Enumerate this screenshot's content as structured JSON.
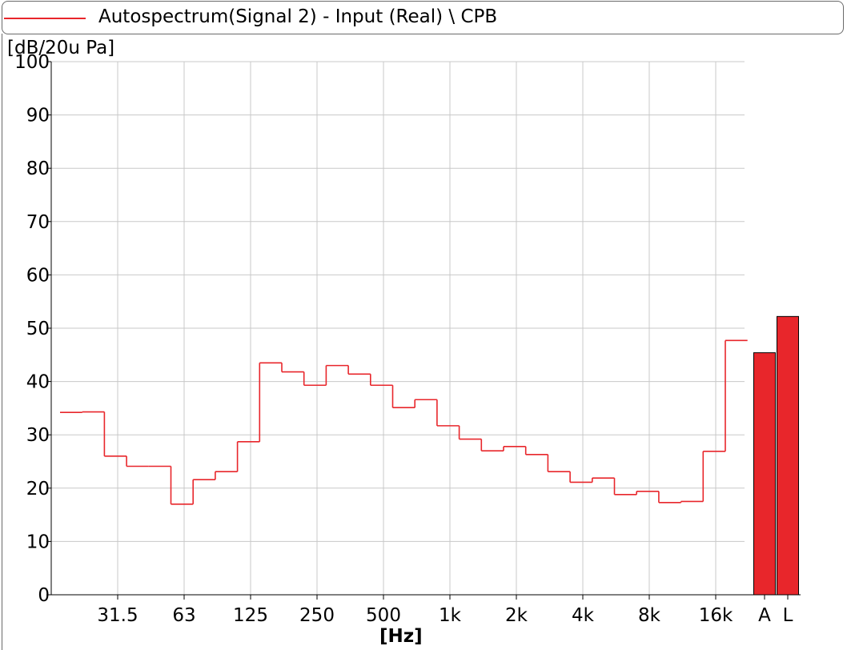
{
  "legend": {
    "label": "Autospectrum(Signal 2) - Input (Real) \\ CPB",
    "color": "#e8262b"
  },
  "chart_data": {
    "type": "line",
    "subtype": "step (1/1-octave CPB spectrum) with overall level bars",
    "title": "",
    "ylabel": "[dB/20u Pa]",
    "xlabel": "[Hz]",
    "ylim": [
      0,
      100
    ],
    "y_ticks": [
      "0",
      "10",
      "20",
      "30",
      "40",
      "50",
      "60",
      "70",
      "80",
      "90",
      "100"
    ],
    "x_tick_labels": [
      "31.5",
      "63",
      "125",
      "250",
      "500",
      "1k",
      "2k",
      "4k",
      "8k",
      "16k"
    ],
    "x_scale": "log (octave bands)",
    "grid": true,
    "series": [
      {
        "name": "Autospectrum(Signal 2) - Input (Real) \\ CPB",
        "color": "#e8262b",
        "x": [
          "20",
          "25",
          "31.5",
          "40",
          "50",
          "63",
          "80",
          "100",
          "125",
          "160",
          "200",
          "250",
          "315",
          "400",
          "500",
          "630",
          "800",
          "1k",
          "1.25k",
          "1.6k",
          "2k",
          "2.5k",
          "3.15k",
          "4k",
          "5k",
          "6.3k",
          "8k",
          "10k",
          "12.5k",
          "16k",
          "20k"
        ],
        "values": [
          34.2,
          34.3,
          26.0,
          24.1,
          24.1,
          17.0,
          21.6,
          23.1,
          28.7,
          43.5,
          41.8,
          39.3,
          43.0,
          41.4,
          39.3,
          35.1,
          36.6,
          31.7,
          29.2,
          27.0,
          27.8,
          26.3,
          23.1,
          21.1,
          21.9,
          18.8,
          19.4,
          17.3,
          17.5,
          26.9,
          47.7
        ]
      }
    ],
    "overall_bars": {
      "categories": [
        "A",
        "L"
      ],
      "values": [
        45.4,
        52.2
      ],
      "color": "#e8262b"
    }
  }
}
